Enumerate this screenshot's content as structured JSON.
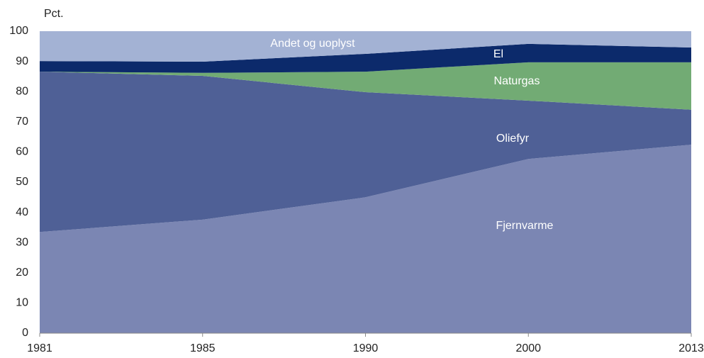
{
  "chart_data": {
    "type": "stacked_area",
    "y_label": "Pct.",
    "categories": [
      "1981",
      "1985",
      "1990",
      "2000",
      "2013"
    ],
    "series": [
      {
        "name": "Fjernvarme",
        "color": "#7b86b3",
        "values": [
          33.5,
          37.6,
          45.0,
          57.7,
          62.4
        ]
      },
      {
        "name": "Oliefyr",
        "color": "#4f6096",
        "values": [
          53.1,
          47.6,
          34.8,
          19.3,
          11.6
        ]
      },
      {
        "name": "Naturgas",
        "color": "#72ab74",
        "values": [
          0,
          1.0,
          6.8,
          12.7,
          15.7
        ]
      },
      {
        "name": "El",
        "color": "#0c2a6b",
        "values": [
          3.5,
          3.7,
          5.9,
          6.1,
          4.9
        ]
      },
      {
        "name": "Andet og uoplyst",
        "color": "#a3b2d4",
        "values": [
          9.9,
          10.1,
          7.5,
          4.2,
          5.4
        ]
      }
    ],
    "ylim": [
      0,
      100
    ],
    "yticks": [
      0,
      10,
      20,
      30,
      40,
      50,
      60,
      70,
      80,
      90,
      100
    ],
    "grid": false
  }
}
